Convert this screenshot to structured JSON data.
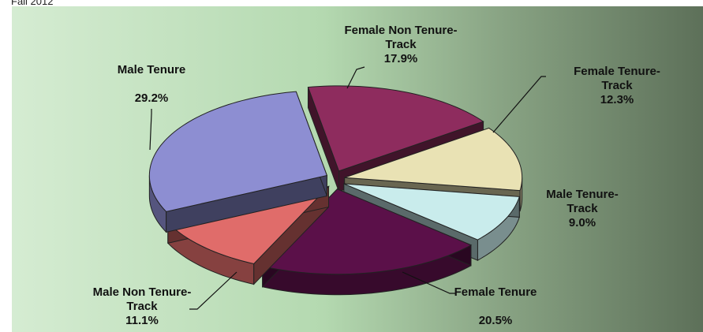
{
  "chart_data": {
    "type": "pie",
    "title": "Fall 2012",
    "categories": [
      "Female Non Tenure-Track",
      "Female Tenure-Track",
      "Male Tenure-Track",
      "Female Tenure",
      "Male Non Tenure-Track",
      "Male Tenure"
    ],
    "values": [
      17.9,
      12.3,
      9.0,
      20.5,
      11.1,
      29.2
    ],
    "value_labels": [
      "17.9%",
      "12.3%",
      "9.0%",
      "20.5%",
      "11.1%",
      "29.2%"
    ],
    "colors": [
      "#8e2c5e",
      "#e9e2b4",
      "#c9ecec",
      "#5b1049",
      "#e06c6a",
      "#8d8ed2"
    ]
  }
}
